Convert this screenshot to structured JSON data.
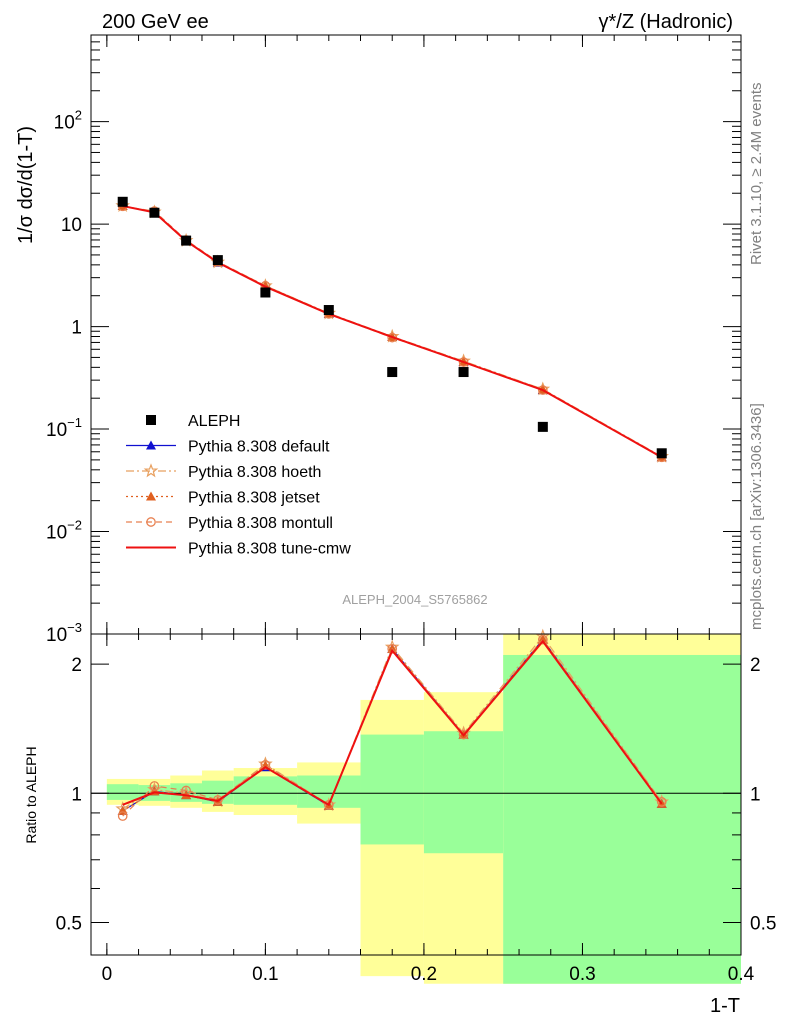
{
  "header": {
    "left": "200 GeV ee",
    "right": "γ*/Z (Hadronic)"
  },
  "side_labels": {
    "rivet": "Rivet 3.1.10, ≥ 2.4M events",
    "mcplots": "mcplots.cern.ch [arXiv:1306.3436]"
  },
  "analysis_id": "ALEPH_2004_S5765862",
  "chart_data": [
    {
      "type": "line",
      "panel": "main",
      "ylabel": "1/σ  dσ/d(1-T)",
      "yscale": "log",
      "ylim": [
        0.001,
        700
      ],
      "xlim": [
        -0.01,
        0.4
      ],
      "ytick_labels": [
        {
          "v": 0.001,
          "base": "10",
          "exp": "−3"
        },
        {
          "v": 0.01,
          "base": "10",
          "exp": "−2"
        },
        {
          "v": 0.1,
          "base": "10",
          "exp": "−1"
        },
        {
          "v": 1,
          "base": "1",
          "exp": ""
        },
        {
          "v": 10,
          "base": "10",
          "exp": ""
        },
        {
          "v": 100,
          "base": "10",
          "exp": "2"
        }
      ],
      "x": [
        0.01,
        0.03,
        0.05,
        0.07,
        0.1,
        0.14,
        0.18,
        0.225,
        0.275,
        0.35
      ],
      "data": {
        "name": "ALEPH",
        "values": [
          16.5,
          12.9,
          6.9,
          4.45,
          2.15,
          1.45,
          0.36,
          0.36,
          0.105,
          0.058
        ]
      },
      "series": [
        {
          "name": "Pythia 8.308 default",
          "color": "#1010d0",
          "marker": "triangle",
          "dash": "",
          "values": [
            15.0,
            13.0,
            6.8,
            4.2,
            2.45,
            1.33,
            0.79,
            0.45,
            0.24,
            0.053
          ]
        },
        {
          "name": "Pythia 8.308 hoeth",
          "color": "#e8a060",
          "marker": "star",
          "dash": "8,3,2,3",
          "values": [
            15.1,
            13.1,
            6.9,
            4.25,
            2.5,
            1.35,
            0.8,
            0.46,
            0.245,
            0.054
          ]
        },
        {
          "name": "Pythia 8.308 jetset",
          "color": "#e06020",
          "marker": "triangle",
          "dash": "2,3",
          "values": [
            15.0,
            13.0,
            6.85,
            4.25,
            2.5,
            1.34,
            0.79,
            0.455,
            0.243,
            0.053
          ]
        },
        {
          "name": "Pythia 8.308 montull",
          "color": "#e88050",
          "marker": "circle",
          "dash": "6,4",
          "values": [
            14.9,
            13.4,
            7.0,
            4.3,
            2.5,
            1.33,
            0.78,
            0.45,
            0.24,
            0.053
          ]
        },
        {
          "name": "Pythia 8.308 tune-cmw",
          "color": "#ee1111",
          "marker": "none",
          "dash": "",
          "values": [
            15.0,
            13.0,
            6.85,
            4.22,
            2.45,
            1.33,
            0.79,
            0.45,
            0.24,
            0.053
          ]
        }
      ]
    },
    {
      "type": "line",
      "panel": "ratio",
      "ylabel": "Ratio to ALEPH",
      "xlabel": "1-T",
      "yscale": "log",
      "ylim": [
        0.42,
        2.35
      ],
      "xlim": [
        -0.01,
        0.4
      ],
      "yticks": [
        0.5,
        1,
        2
      ],
      "ytick_labels": [
        "0.5",
        "1",
        "2"
      ],
      "xticks": [
        0,
        0.1,
        0.2,
        0.3,
        0.4
      ],
      "xtick_labels": [
        "0",
        "0.1",
        "0.2",
        "0.3",
        "0.4"
      ],
      "bands": [
        {
          "x0": 0.0,
          "x1": 0.02,
          "g": [
            0.965,
            1.05
          ],
          "y": [
            0.94,
            1.08
          ]
        },
        {
          "x0": 0.02,
          "x1": 0.04,
          "g": [
            0.96,
            1.045
          ],
          "y": [
            0.935,
            1.08
          ]
        },
        {
          "x0": 0.04,
          "x1": 0.06,
          "g": [
            0.955,
            1.055
          ],
          "y": [
            0.925,
            1.1
          ]
        },
        {
          "x0": 0.06,
          "x1": 0.08,
          "g": [
            0.945,
            1.07
          ],
          "y": [
            0.905,
            1.13
          ]
        },
        {
          "x0": 0.08,
          "x1": 0.12,
          "g": [
            0.94,
            1.095
          ],
          "y": [
            0.89,
            1.145
          ]
        },
        {
          "x0": 0.12,
          "x1": 0.16,
          "g": [
            0.925,
            1.1
          ],
          "y": [
            0.85,
            1.18
          ]
        },
        {
          "x0": 0.16,
          "x1": 0.2,
          "g": [
            0.76,
            1.37
          ],
          "y": [
            0.375,
            1.65
          ]
        },
        {
          "x0": 0.2,
          "x1": 0.25,
          "g": [
            0.725,
            1.395
          ],
          "y": [
            0.36,
            1.72
          ]
        },
        {
          "x0": 0.25,
          "x1": 0.4,
          "g": [
            0.36,
            2.1
          ],
          "y": [
            0.36,
            2.35
          ]
        }
      ],
      "x": [
        0.01,
        0.03,
        0.05,
        0.07,
        0.1,
        0.14,
        0.18,
        0.225,
        0.275,
        0.35
      ],
      "series": [
        {
          "name": "Pythia 8.308 default",
          "color": "#1010d0",
          "marker": "triangle",
          "dash": "",
          "values": [
            0.91,
            1.01,
            0.99,
            0.955,
            1.15,
            0.935,
            2.17,
            1.37,
            2.28,
            0.945
          ]
        },
        {
          "name": "Pythia 8.308 hoeth",
          "color": "#e8a060",
          "marker": "star",
          "dash": "8,3,2,3",
          "values": [
            0.92,
            1.02,
            1.0,
            0.96,
            1.17,
            0.94,
            2.19,
            1.38,
            2.32,
            0.955
          ]
        },
        {
          "name": "Pythia 8.308 jetset",
          "color": "#e06020",
          "marker": "triangle",
          "dash": "2,3",
          "values": [
            0.91,
            1.01,
            0.99,
            0.955,
            1.16,
            0.935,
            2.17,
            1.37,
            2.28,
            0.945
          ]
        },
        {
          "name": "Pythia 8.308 montull",
          "color": "#e88050",
          "marker": "circle",
          "dash": "6,4",
          "values": [
            0.885,
            1.04,
            1.015,
            0.965,
            1.165,
            0.94,
            2.17,
            1.37,
            2.28,
            0.955
          ]
        },
        {
          "name": "Pythia 8.308 tune-cmw",
          "color": "#ee1111",
          "marker": "none",
          "dash": "",
          "values": [
            0.94,
            1.005,
            0.99,
            0.96,
            1.15,
            0.94,
            2.15,
            1.365,
            2.26,
            0.945
          ]
        }
      ]
    }
  ]
}
